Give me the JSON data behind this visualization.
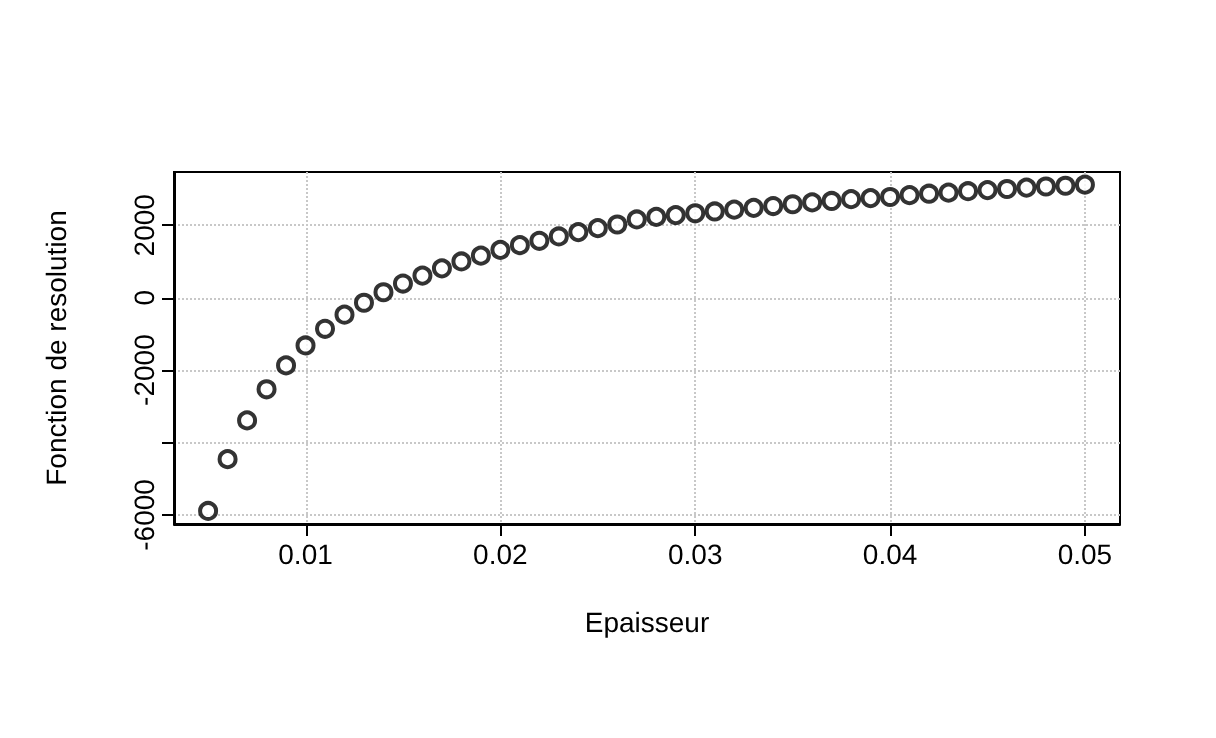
{
  "chart_data": {
    "type": "scatter",
    "xlabel": "Epaisseur",
    "ylabel": "Fonction de resolution",
    "x": [
      0.005,
      0.006,
      0.007,
      0.008,
      0.009,
      0.01,
      0.011,
      0.012,
      0.013,
      0.014,
      0.015,
      0.016,
      0.017,
      0.018,
      0.019,
      0.02,
      0.021,
      0.022,
      0.023,
      0.024,
      0.025,
      0.026,
      0.027,
      0.028,
      0.029,
      0.03,
      0.031,
      0.032,
      0.033,
      0.034,
      0.035,
      0.036,
      0.037,
      0.038,
      0.039,
      0.04,
      0.041,
      0.042,
      0.043,
      0.044,
      0.045,
      0.046,
      0.047,
      0.048,
      0.049,
      0.05
    ],
    "series": [
      {
        "color": "#000000",
        "values": [
          -5890,
          -4460,
          -3390,
          -2530,
          -1870,
          -1320,
          -860,
          -470,
          -140,
          150,
          390,
          610,
          810,
          1000,
          1160,
          1320,
          1450,
          1570,
          1690,
          1810,
          1920,
          2020,
          2160,
          2230,
          2280,
          2330,
          2380,
          2430,
          2480,
          2530,
          2580,
          2630,
          2670,
          2720,
          2750,
          2780,
          2830,
          2870,
          2900,
          2940,
          2970,
          3000,
          3040,
          3070,
          3090,
          3120
        ]
      }
    ],
    "xlim": [
      0.00325,
      0.0518
    ],
    "xticks": [
      0.01,
      0.02,
      0.03,
      0.04,
      0.05
    ],
    "ylim": [
      -6250,
      3470
    ],
    "yticks": [
      -6000,
      {
        "value": -4000,
        "label": null
      },
      -2000,
      0,
      2000
    ],
    "grid": true,
    "marker": "circle"
  }
}
